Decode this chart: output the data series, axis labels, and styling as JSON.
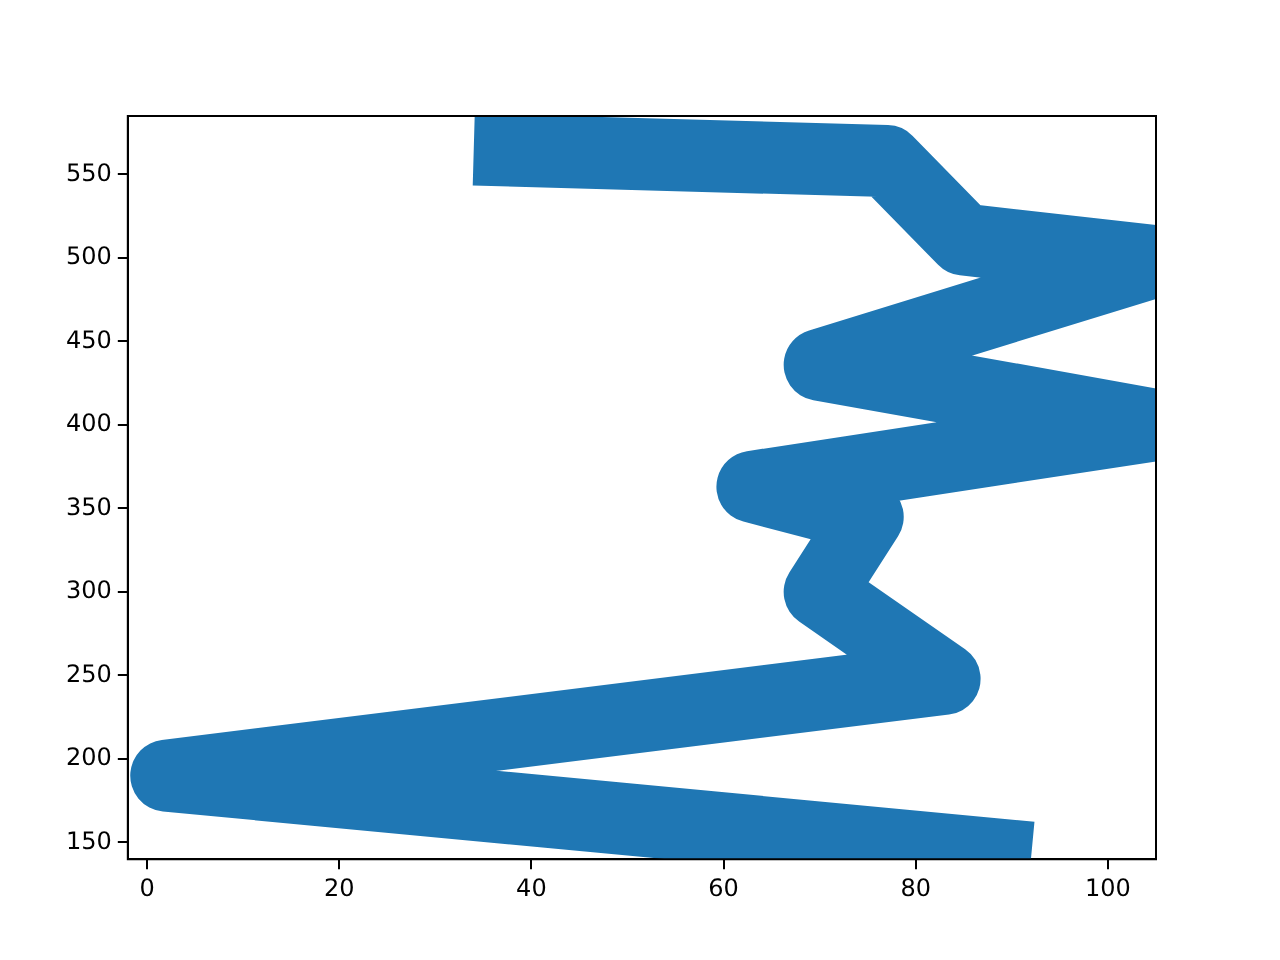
{
  "chart_data": {
    "type": "line",
    "color": "#1f77b4",
    "x": [
      92,
      2,
      83,
      70,
      75,
      63,
      105,
      70,
      105,
      85,
      77,
      34
    ],
    "values": [
      141,
      190,
      248,
      300,
      345,
      363,
      400,
      436,
      498,
      511,
      558,
      565
    ],
    "xlim": [
      -2,
      105
    ],
    "ylim": [
      140,
      585
    ],
    "xticks": [
      0,
      20,
      40,
      60,
      80,
      100
    ],
    "yticks": [
      150,
      200,
      250,
      300,
      350,
      400,
      450,
      500,
      550
    ],
    "grid": false,
    "legend": false,
    "marker": "none",
    "line_style": "solid"
  }
}
